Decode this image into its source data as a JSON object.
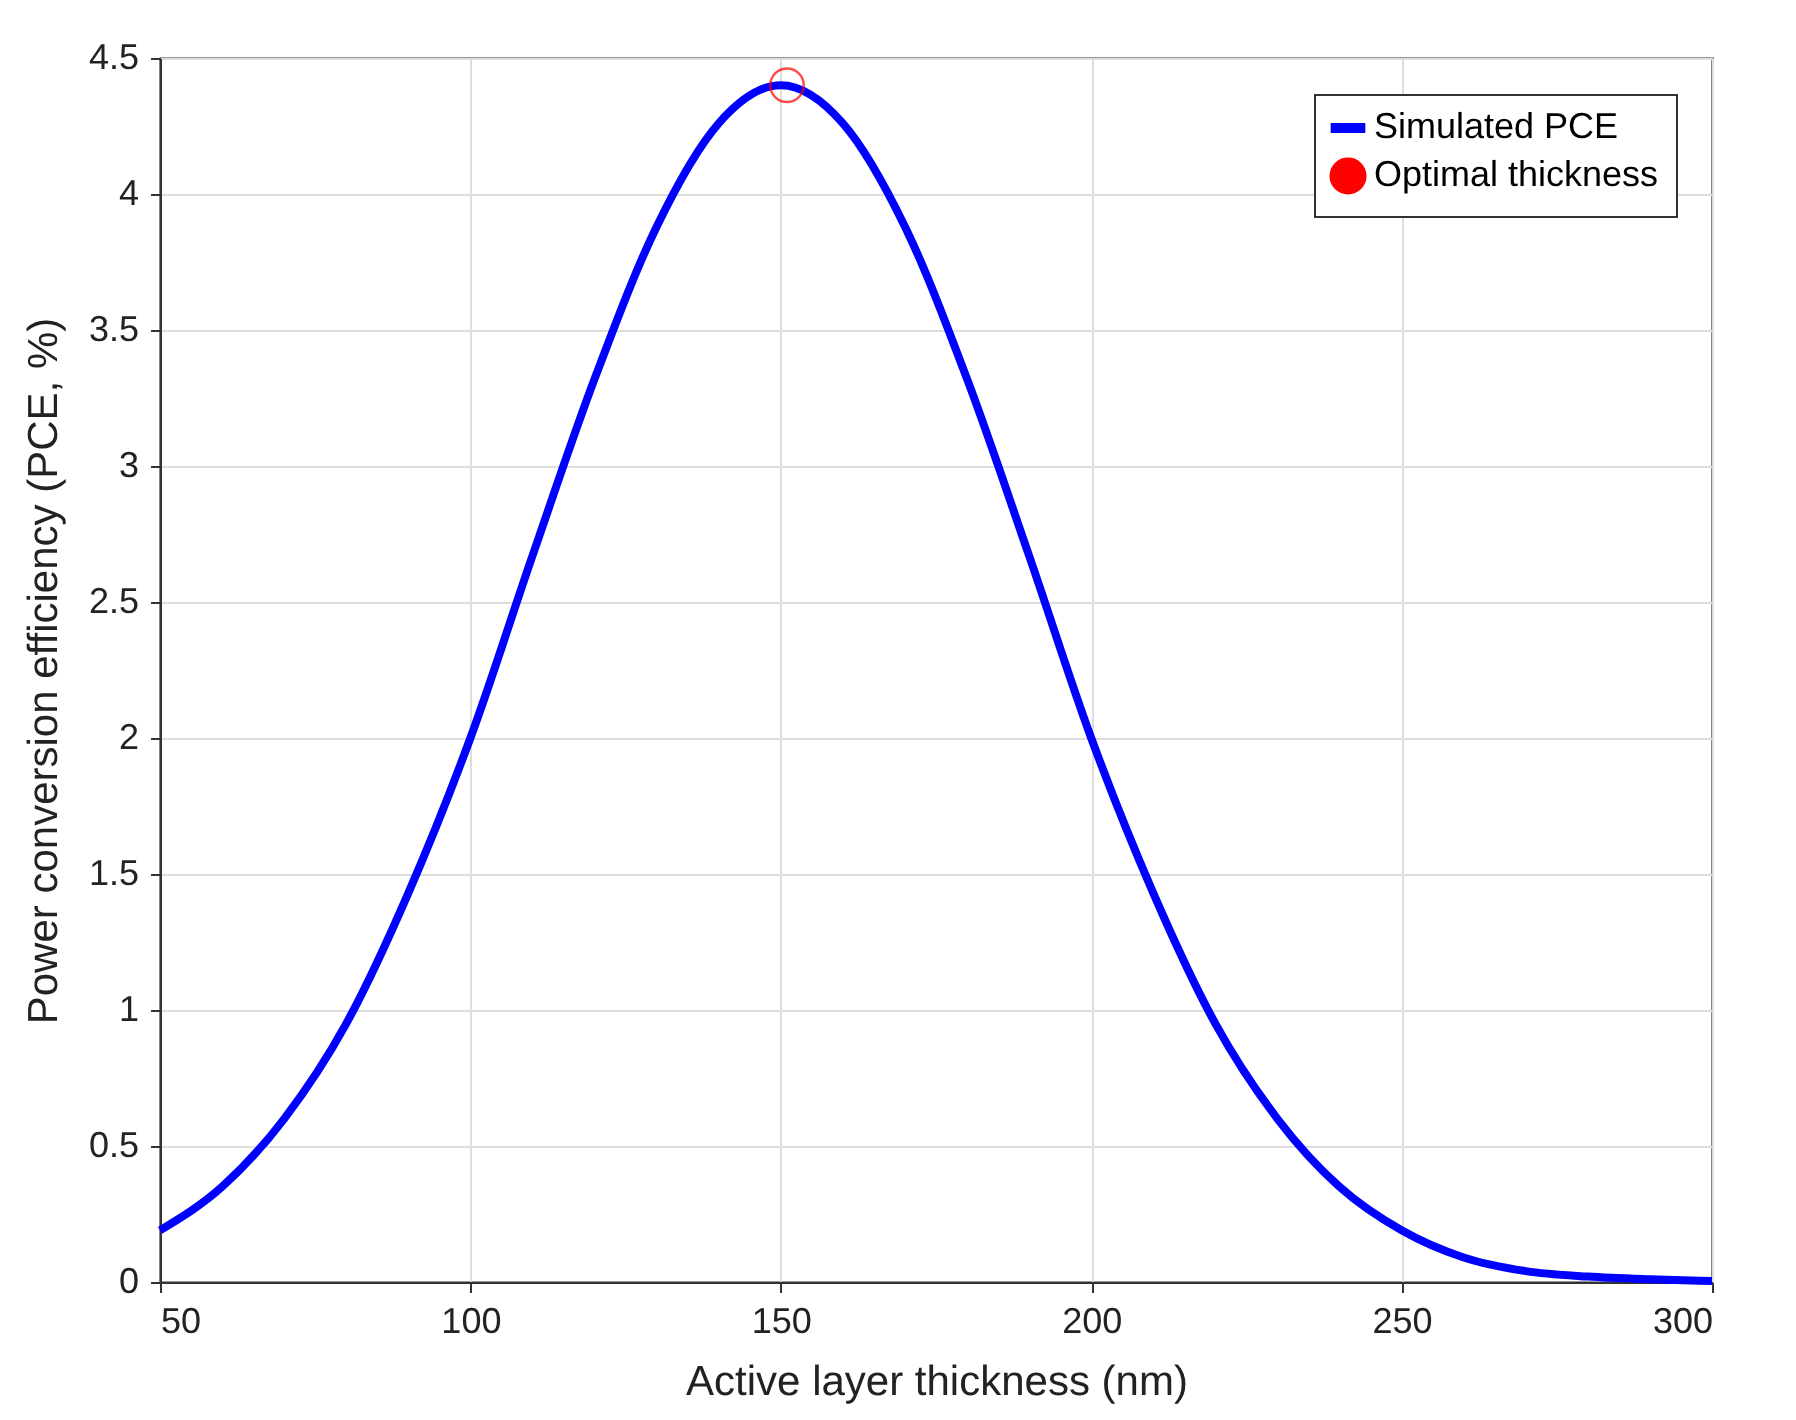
{
  "chart_data": {
    "type": "line",
    "xlabel": "Active layer thickness (nm)",
    "ylabel": "Power conversion efficiency (PCE, %)",
    "x": [
      50,
      60,
      70,
      80,
      90,
      100,
      110,
      120,
      130,
      140,
      150,
      160,
      170,
      180,
      190,
      200,
      210,
      220,
      230,
      240,
      250,
      260,
      270,
      280,
      290,
      300
    ],
    "series": [
      {
        "name": "Simulated PCE",
        "color": "#0000ff",
        "values": [
          0.19,
          0.35,
          0.6,
          0.95,
          1.43,
          2.0,
          2.67,
          3.32,
          3.88,
          4.26,
          4.4,
          4.26,
          3.88,
          3.32,
          2.67,
          2.0,
          1.43,
          0.95,
          0.6,
          0.35,
          0.19,
          0.09,
          0.04,
          0.02,
          0.01,
          0.004
        ]
      },
      {
        "name": "Optimal thickness",
        "type": "scatter",
        "color": "#ff0000",
        "marker": "circle",
        "x": [
          151
        ],
        "values": [
          4.4
        ]
      }
    ],
    "xlim": [
      50,
      300
    ],
    "xticks": [
      50,
      100,
      150,
      200,
      250,
      300
    ],
    "ylim": [
      0,
      4.5
    ],
    "yticks": [
      {
        "value": 0,
        "label": "0"
      },
      0.5,
      {
        "value": 1,
        "label": "1"
      },
      1.5,
      {
        "value": 2,
        "label": "2"
      },
      2.5,
      {
        "value": 3,
        "label": "3"
      },
      3.5,
      {
        "value": 4,
        "label": "4"
      },
      4.5
    ],
    "grid": true,
    "legend": "top right"
  }
}
